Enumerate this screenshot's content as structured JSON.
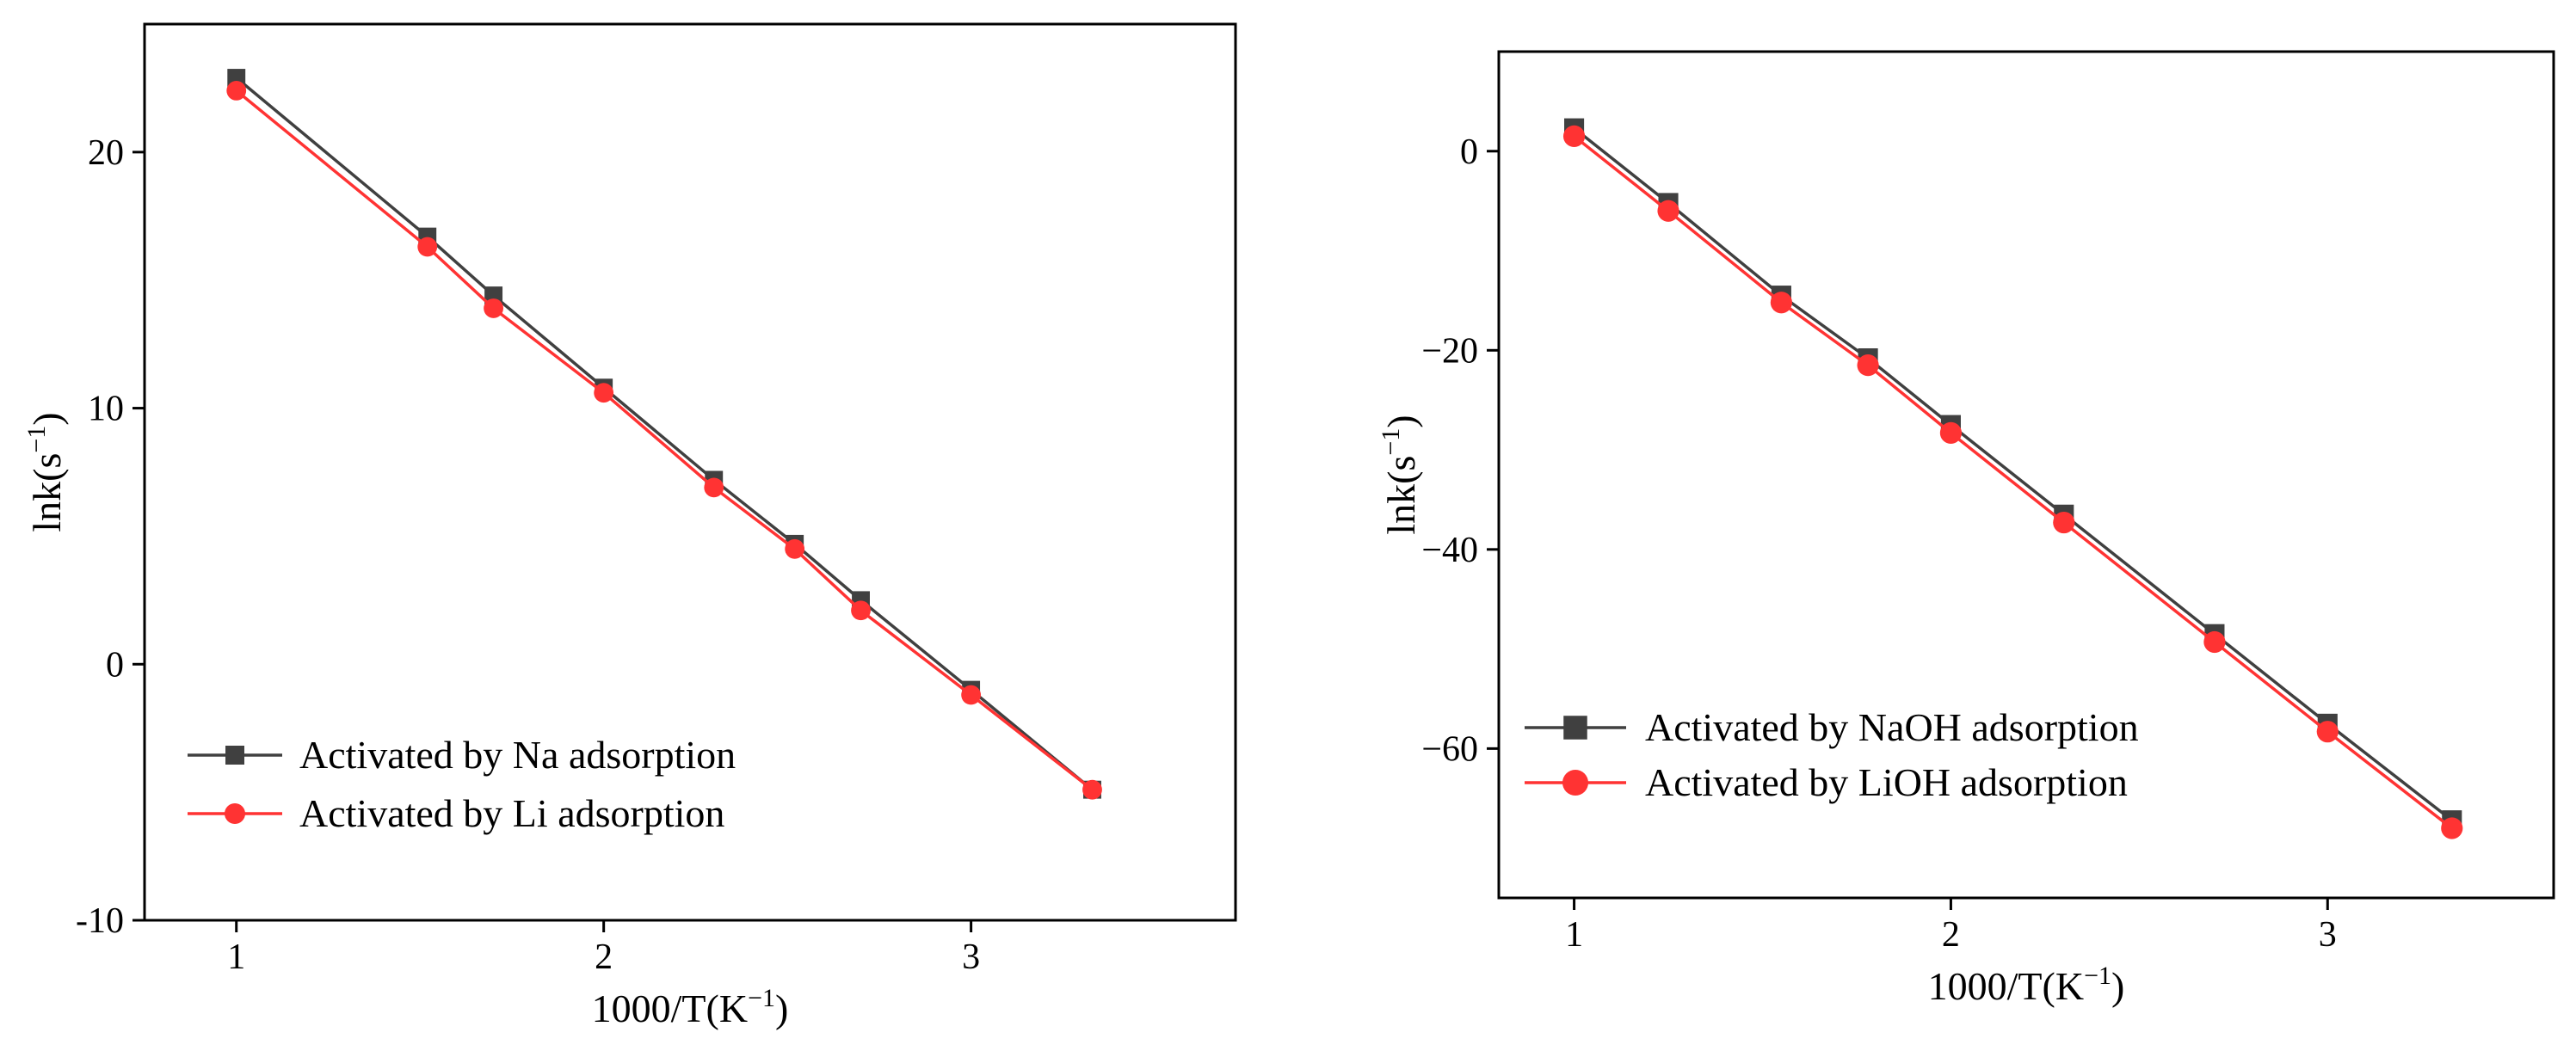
{
  "chart_data": [
    {
      "type": "line",
      "title": "",
      "xlabel": "1000/T(K",
      "xlabel_sup": "−1",
      "xlabel_end": ")",
      "ylabel": "lnk(s",
      "ylabel_sup": "−1",
      "ylabel_end": ")",
      "xlim": [
        0.75,
        3.72
      ],
      "ylim": [
        -10,
        25
      ],
      "xticks": [
        1,
        2,
        3
      ],
      "xtick_labels": [
        "1",
        "2",
        "3"
      ],
      "yticks": [
        -10,
        0,
        10,
        20
      ],
      "ytick_labels": [
        "-10",
        "0",
        "10",
        "20"
      ],
      "grid": false,
      "legend_position": "bottom-left",
      "series": [
        {
          "name": "Activated by Na adsorption",
          "color": "#404040",
          "marker": "square",
          "x": [
            1.0,
            1.52,
            1.7,
            2.0,
            2.3,
            2.52,
            2.7,
            3.0,
            3.33
          ],
          "y": [
            22.9,
            16.7,
            14.4,
            10.8,
            7.2,
            4.7,
            2.5,
            -1.0,
            -4.9
          ]
        },
        {
          "name": "Activated by Li adsorption",
          "color": "#ff3333",
          "marker": "circle",
          "x": [
            1.0,
            1.52,
            1.7,
            2.0,
            2.3,
            2.52,
            2.7,
            3.0,
            3.33
          ],
          "y": [
            22.4,
            16.3,
            13.9,
            10.6,
            6.9,
            4.5,
            2.1,
            -1.2,
            -4.9
          ]
        }
      ]
    },
    {
      "type": "line",
      "title": "",
      "xlabel": "1000/T(K",
      "xlabel_sup": "−1",
      "xlabel_end": ")",
      "ylabel": "lnk(s",
      "ylabel_sup": "−1",
      "ylabel_end": ")",
      "xlim": [
        0.8,
        3.6
      ],
      "ylim": [
        -75,
        10
      ],
      "xticks": [
        1,
        2,
        3
      ],
      "xtick_labels": [
        "1",
        "2",
        "3"
      ],
      "yticks": [
        -60,
        -40,
        -20,
        0
      ],
      "ytick_labels": [
        "−60",
        "−40",
        "−20",
        "0"
      ],
      "grid": false,
      "legend_position": "bottom-left",
      "series": [
        {
          "name": "Activated by NaOH adsorption",
          "color": "#404040",
          "marker": "square",
          "x": [
            1.0,
            1.25,
            1.55,
            1.78,
            2.0,
            2.3,
            2.7,
            3.0,
            3.33
          ],
          "y": [
            2.3,
            -5.2,
            -14.5,
            -20.8,
            -27.5,
            -36.5,
            -48.5,
            -57.5,
            -67.2
          ]
        },
        {
          "name": "Activated by LiOH adsorption",
          "color": "#ff3333",
          "marker": "circle",
          "x": [
            1.0,
            1.25,
            1.55,
            1.78,
            2.0,
            2.3,
            2.7,
            3.0,
            3.33
          ],
          "y": [
            1.5,
            -6.0,
            -15.2,
            -21.5,
            -28.3,
            -37.3,
            -49.3,
            -58.3,
            -68.0
          ]
        }
      ]
    }
  ]
}
